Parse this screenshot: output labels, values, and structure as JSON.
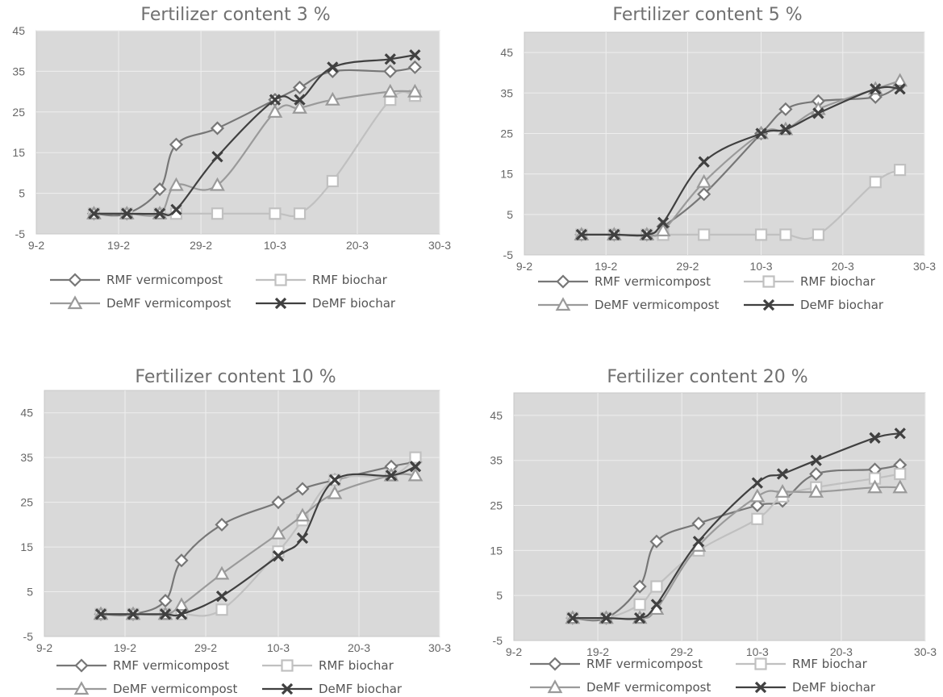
{
  "chart_data": [
    {
      "type": "line",
      "title": "Fertilizer content 3 %",
      "xlabel": "",
      "ylabel": "",
      "xlim": [
        "2017-02-09",
        "2017-03-30"
      ],
      "ylim": [
        -5,
        45
      ],
      "xticks": [
        "9-2",
        "19-2",
        "29-2",
        "10-3",
        "20-3",
        "30-3"
      ],
      "yticks": [
        "-5",
        "5",
        "15",
        "25",
        "35",
        "45"
      ],
      "grid": true,
      "legend_position": "bottom",
      "series": [
        {
          "name": "RMF vermicompost",
          "color": "#777777",
          "marker": "diamond",
          "points": [
            [
              "2017-02-16",
              0
            ],
            [
              "2017-02-20",
              0
            ],
            [
              "2017-02-24",
              6
            ],
            [
              "2017-02-26",
              17
            ],
            [
              "2017-03-03",
              21
            ],
            [
              "2017-03-10",
              28
            ],
            [
              "2017-03-13",
              31
            ],
            [
              "2017-03-17",
              35
            ],
            [
              "2017-03-24",
              35
            ],
            [
              "2017-03-27",
              36
            ]
          ]
        },
        {
          "name": "RMF biochar",
          "color": "#c0c0c0",
          "marker": "square",
          "points": [
            [
              "2017-02-16",
              0
            ],
            [
              "2017-02-20",
              0
            ],
            [
              "2017-02-24",
              0
            ],
            [
              "2017-02-26",
              0
            ],
            [
              "2017-03-03",
              0
            ],
            [
              "2017-03-10",
              0
            ],
            [
              "2017-03-13",
              0
            ],
            [
              "2017-03-17",
              8
            ],
            [
              "2017-03-24",
              28
            ],
            [
              "2017-03-27",
              29
            ]
          ]
        },
        {
          "name": "DeMF vermicompost",
          "color": "#9a9a9a",
          "marker": "triangle",
          "points": [
            [
              "2017-02-16",
              0
            ],
            [
              "2017-02-20",
              0
            ],
            [
              "2017-02-24",
              0
            ],
            [
              "2017-02-26",
              7
            ],
            [
              "2017-03-03",
              7
            ],
            [
              "2017-03-10",
              25
            ],
            [
              "2017-03-13",
              26
            ],
            [
              "2017-03-17",
              28
            ],
            [
              "2017-03-24",
              30
            ],
            [
              "2017-03-27",
              30
            ]
          ]
        },
        {
          "name": "DeMF biochar",
          "color": "#404040",
          "marker": "cross",
          "points": [
            [
              "2017-02-16",
              0
            ],
            [
              "2017-02-20",
              0
            ],
            [
              "2017-02-24",
              0
            ],
            [
              "2017-02-26",
              1
            ],
            [
              "2017-03-03",
              14
            ],
            [
              "2017-03-10",
              28
            ],
            [
              "2017-03-13",
              28
            ],
            [
              "2017-03-17",
              36
            ],
            [
              "2017-03-24",
              38
            ],
            [
              "2017-03-27",
              39
            ]
          ]
        }
      ]
    },
    {
      "type": "line",
      "title": "Fertilizer content 5 %",
      "xlabel": "",
      "ylabel": "",
      "xlim": [
        "2017-02-09",
        "2017-03-30"
      ],
      "ylim": [
        -5,
        50
      ],
      "xticks": [
        "9-2",
        "19-2",
        "29-2",
        "10-3",
        "20-3",
        "30-3"
      ],
      "yticks": [
        "-5",
        "5",
        "15",
        "25",
        "35",
        "45"
      ],
      "grid": true,
      "legend_position": "bottom",
      "series": [
        {
          "name": "RMF vermicompost",
          "color": "#777777",
          "marker": "diamond",
          "points": [
            [
              "2017-02-16",
              0
            ],
            [
              "2017-02-20",
              0
            ],
            [
              "2017-02-24",
              0
            ],
            [
              "2017-02-26",
              2
            ],
            [
              "2017-03-03",
              10
            ],
            [
              "2017-03-10",
              25
            ],
            [
              "2017-03-13",
              31
            ],
            [
              "2017-03-17",
              33
            ],
            [
              "2017-03-24",
              34
            ],
            [
              "2017-03-27",
              37
            ]
          ]
        },
        {
          "name": "RMF biochar",
          "color": "#c0c0c0",
          "marker": "square",
          "points": [
            [
              "2017-02-16",
              0
            ],
            [
              "2017-02-20",
              0
            ],
            [
              "2017-02-24",
              0
            ],
            [
              "2017-02-26",
              0
            ],
            [
              "2017-03-03",
              0
            ],
            [
              "2017-03-10",
              0
            ],
            [
              "2017-03-13",
              0
            ],
            [
              "2017-03-17",
              0
            ],
            [
              "2017-03-24",
              13
            ],
            [
              "2017-03-27",
              16
            ]
          ]
        },
        {
          "name": "DeMF vermicompost",
          "color": "#9a9a9a",
          "marker": "triangle",
          "points": [
            [
              "2017-02-16",
              0
            ],
            [
              "2017-02-20",
              0
            ],
            [
              "2017-02-24",
              0
            ],
            [
              "2017-02-26",
              1
            ],
            [
              "2017-03-03",
              13
            ],
            [
              "2017-03-10",
              25
            ],
            [
              "2017-03-13",
              26
            ],
            [
              "2017-03-17",
              31
            ],
            [
              "2017-03-24",
              36
            ],
            [
              "2017-03-27",
              38
            ]
          ]
        },
        {
          "name": "DeMF biochar",
          "color": "#404040",
          "marker": "cross",
          "points": [
            [
              "2017-02-16",
              0
            ],
            [
              "2017-02-20",
              0
            ],
            [
              "2017-02-24",
              0
            ],
            [
              "2017-02-26",
              3
            ],
            [
              "2017-03-03",
              18
            ],
            [
              "2017-03-10",
              25
            ],
            [
              "2017-03-13",
              26
            ],
            [
              "2017-03-17",
              30
            ],
            [
              "2017-03-24",
              36
            ],
            [
              "2017-03-27",
              36
            ]
          ]
        }
      ]
    },
    {
      "type": "line",
      "title": "Fertilizer content 10 %",
      "xlabel": "",
      "ylabel": "",
      "xlim": [
        "2017-02-09",
        "2017-03-30"
      ],
      "ylim": [
        -5,
        50
      ],
      "xticks": [
        "9-2",
        "19-2",
        "29-2",
        "10-3",
        "20-3",
        "30-3"
      ],
      "yticks": [
        "-5",
        "5",
        "15",
        "25",
        "35",
        "45"
      ],
      "grid": true,
      "legend_position": "bottom",
      "series": [
        {
          "name": "RMF vermicompost",
          "color": "#777777",
          "marker": "diamond",
          "points": [
            [
              "2017-02-16",
              0
            ],
            [
              "2017-02-20",
              0
            ],
            [
              "2017-02-24",
              3
            ],
            [
              "2017-02-26",
              12
            ],
            [
              "2017-03-03",
              20
            ],
            [
              "2017-03-10",
              25
            ],
            [
              "2017-03-13",
              28
            ],
            [
              "2017-03-17",
              30
            ],
            [
              "2017-03-24",
              33
            ],
            [
              "2017-03-27",
              34
            ]
          ]
        },
        {
          "name": "RMF biochar",
          "color": "#c0c0c0",
          "marker": "square",
          "points": [
            [
              "2017-02-16",
              0
            ],
            [
              "2017-02-20",
              0
            ],
            [
              "2017-02-24",
              0
            ],
            [
              "2017-02-26",
              0
            ],
            [
              "2017-03-03",
              1
            ],
            [
              "2017-03-10",
              14
            ],
            [
              "2017-03-13",
              21
            ],
            [
              "2017-03-17",
              30
            ],
            [
              "2017-03-24",
              31
            ],
            [
              "2017-03-27",
              35
            ]
          ]
        },
        {
          "name": "DeMF vermicompost",
          "color": "#9a9a9a",
          "marker": "triangle",
          "points": [
            [
              "2017-02-16",
              0
            ],
            [
              "2017-02-20",
              0
            ],
            [
              "2017-02-24",
              0
            ],
            [
              "2017-02-26",
              2
            ],
            [
              "2017-03-03",
              9
            ],
            [
              "2017-03-10",
              18
            ],
            [
              "2017-03-13",
              22
            ],
            [
              "2017-03-17",
              27
            ],
            [
              "2017-03-24",
              31
            ],
            [
              "2017-03-27",
              31
            ]
          ]
        },
        {
          "name": "DeMF biochar",
          "color": "#404040",
          "marker": "cross",
          "points": [
            [
              "2017-02-16",
              0
            ],
            [
              "2017-02-20",
              0
            ],
            [
              "2017-02-24",
              0
            ],
            [
              "2017-02-26",
              0
            ],
            [
              "2017-03-03",
              4
            ],
            [
              "2017-03-10",
              13
            ],
            [
              "2017-03-13",
              17
            ],
            [
              "2017-03-17",
              30
            ],
            [
              "2017-03-24",
              31
            ],
            [
              "2017-03-27",
              33
            ]
          ]
        }
      ]
    },
    {
      "type": "line",
      "title": "Fertilizer content 20 %",
      "xlabel": "",
      "ylabel": "",
      "xlim": [
        "2017-02-09",
        "2017-03-30"
      ],
      "ylim": [
        -5,
        50
      ],
      "xticks": [
        "9-2",
        "19-2",
        "29-2",
        "10-3",
        "20-3",
        "30-3"
      ],
      "yticks": [
        "-5",
        "5",
        "15",
        "25",
        "35",
        "45"
      ],
      "grid": true,
      "legend_position": "bottom",
      "series": [
        {
          "name": "RMF vermicompost",
          "color": "#777777",
          "marker": "diamond",
          "points": [
            [
              "2017-02-16",
              0
            ],
            [
              "2017-02-20",
              0
            ],
            [
              "2017-02-24",
              7
            ],
            [
              "2017-02-26",
              17
            ],
            [
              "2017-03-03",
              21
            ],
            [
              "2017-03-10",
              25
            ],
            [
              "2017-03-13",
              26
            ],
            [
              "2017-03-17",
              32
            ],
            [
              "2017-03-24",
              33
            ],
            [
              "2017-03-27",
              34
            ]
          ]
        },
        {
          "name": "RMF biochar",
          "color": "#c0c0c0",
          "marker": "square",
          "points": [
            [
              "2017-02-16",
              0
            ],
            [
              "2017-02-20",
              0
            ],
            [
              "2017-02-24",
              3
            ],
            [
              "2017-02-26",
              7
            ],
            [
              "2017-03-03",
              15
            ],
            [
              "2017-03-10",
              22
            ],
            [
              "2017-03-13",
              27
            ],
            [
              "2017-03-17",
              29
            ],
            [
              "2017-03-24",
              31
            ],
            [
              "2017-03-27",
              32
            ]
          ]
        },
        {
          "name": "DeMF vermicompost",
          "color": "#9a9a9a",
          "marker": "triangle",
          "points": [
            [
              "2017-02-16",
              0
            ],
            [
              "2017-02-20",
              0
            ],
            [
              "2017-02-24",
              0
            ],
            [
              "2017-02-26",
              2
            ],
            [
              "2017-03-03",
              16
            ],
            [
              "2017-03-10",
              27
            ],
            [
              "2017-03-13",
              28
            ],
            [
              "2017-03-17",
              28
            ],
            [
              "2017-03-24",
              29
            ],
            [
              "2017-03-27",
              29
            ]
          ]
        },
        {
          "name": "DeMF biochar",
          "color": "#404040",
          "marker": "cross",
          "points": [
            [
              "2017-02-16",
              0
            ],
            [
              "2017-02-20",
              0
            ],
            [
              "2017-02-24",
              0
            ],
            [
              "2017-02-26",
              3
            ],
            [
              "2017-03-03",
              17
            ],
            [
              "2017-03-10",
              30
            ],
            [
              "2017-03-13",
              32
            ],
            [
              "2017-03-17",
              35
            ],
            [
              "2017-03-24",
              40
            ],
            [
              "2017-03-27",
              41
            ]
          ]
        }
      ]
    }
  ]
}
